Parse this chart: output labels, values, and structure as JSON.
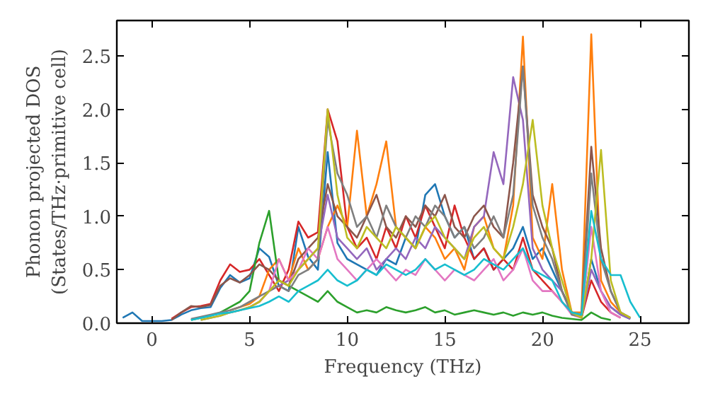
{
  "chart_data": {
    "type": "line",
    "xlabel": "Frequency (THz)",
    "ylabel": "Phonon projected DOS\n(States/THz·primitive cell)",
    "x": [
      -1.5,
      -1,
      -0.5,
      0,
      0.5,
      1,
      1.5,
      2,
      2.5,
      3,
      3.5,
      4,
      4.5,
      5,
      5.5,
      6,
      6.5,
      7,
      7.5,
      8,
      8.5,
      9,
      9.5,
      10,
      10.5,
      11,
      11.5,
      12,
      12.5,
      13,
      13.5,
      14,
      14.5,
      15,
      15.5,
      16,
      16.5,
      17,
      17.5,
      18,
      18.5,
      19,
      19.5,
      20,
      20.5,
      21,
      21.5,
      22,
      22.5,
      23,
      23.5,
      24,
      24.5,
      25
    ],
    "xlim": [
      -1.8,
      27.5
    ],
    "ylim": [
      0,
      2.83
    ],
    "xticks": [
      0,
      5,
      10,
      15,
      20,
      25
    ],
    "yticks": [
      {
        "value": 0,
        "label": "0.0"
      },
      {
        "value": 0.5,
        "label": "0.5"
      },
      {
        "value": 1,
        "label": "1.0"
      },
      {
        "value": 1.5,
        "label": "1.5"
      },
      {
        "value": 2,
        "label": "2.0"
      },
      {
        "value": 2.5,
        "label": "2.5"
      }
    ],
    "grid": false,
    "marker": "none",
    "line_style": "solid",
    "series": [
      {
        "color": "#1f77b4",
        "values": [
          0.05,
          0.1,
          0.02,
          0.02,
          0.02,
          0.03,
          0.08,
          0.12,
          0.14,
          0.15,
          0.33,
          0.45,
          0.38,
          0.42,
          0.7,
          0.62,
          0.35,
          0.3,
          0.9,
          0.62,
          0.5,
          1.6,
          0.75,
          0.6,
          0.55,
          0.5,
          0.45,
          0.6,
          0.55,
          0.8,
          0.7,
          1.2,
          1.3,
          1.0,
          0.8,
          0.9,
          0.6,
          0.7,
          0.5,
          0.6,
          0.7,
          0.9,
          0.6,
          0.7,
          0.5,
          0.3,
          0.1,
          0.05,
          0.6,
          0.3,
          0.15,
          0.08,
          0.04,
          null
        ]
      },
      {
        "color": "#d62728",
        "values": [
          null,
          null,
          null,
          null,
          null,
          0.04,
          0.1,
          0.15,
          0.16,
          0.18,
          0.4,
          0.55,
          0.48,
          0.5,
          0.6,
          0.45,
          0.3,
          0.5,
          0.95,
          0.8,
          0.85,
          2.0,
          1.7,
          0.9,
          0.7,
          0.8,
          0.6,
          0.9,
          0.7,
          1.0,
          0.8,
          1.1,
          0.9,
          0.7,
          1.1,
          0.8,
          0.6,
          0.7,
          0.5,
          0.6,
          0.5,
          0.8,
          0.5,
          0.4,
          0.3,
          0.2,
          0.1,
          0.05,
          0.4,
          0.2,
          0.1,
          0.05,
          null,
          null
        ]
      },
      {
        "color": "#ff7f0e",
        "values": [
          null,
          null,
          null,
          null,
          null,
          null,
          null,
          null,
          null,
          null,
          null,
          0.12,
          0.15,
          0.18,
          0.25,
          0.5,
          0.6,
          0.4,
          0.7,
          0.5,
          0.6,
          0.9,
          1.1,
          0.9,
          1.8,
          1.0,
          1.3,
          1.7,
          0.9,
          0.8,
          0.7,
          0.9,
          0.8,
          0.6,
          0.7,
          0.5,
          0.9,
          1.0,
          0.7,
          0.6,
          1.1,
          2.68,
          0.8,
          0.6,
          1.3,
          0.5,
          0.1,
          0.1,
          2.7,
          0.4,
          0.2,
          0.1,
          0.05,
          null
        ]
      },
      {
        "color": "#2ca02c",
        "values": [
          null,
          null,
          null,
          null,
          null,
          null,
          null,
          0.03,
          0.05,
          0.07,
          0.1,
          0.15,
          0.2,
          0.3,
          0.75,
          1.05,
          0.4,
          0.35,
          0.3,
          0.25,
          0.2,
          0.3,
          0.2,
          0.15,
          0.1,
          0.12,
          0.1,
          0.15,
          0.12,
          0.1,
          0.12,
          0.15,
          0.1,
          0.12,
          0.08,
          0.1,
          0.12,
          0.1,
          0.08,
          0.1,
          0.07,
          0.1,
          0.08,
          0.1,
          0.07,
          0.05,
          0.04,
          0.03,
          0.1,
          0.05,
          0.03,
          null,
          null,
          null
        ]
      },
      {
        "color": "#9467bd",
        "values": [
          null,
          null,
          null,
          null,
          null,
          null,
          null,
          null,
          0.03,
          0.05,
          0.07,
          0.1,
          0.12,
          0.15,
          0.2,
          0.3,
          0.35,
          0.4,
          0.5,
          0.6,
          0.7,
          1.2,
          0.8,
          0.7,
          0.6,
          0.7,
          0.5,
          0.6,
          0.7,
          0.6,
          0.8,
          0.7,
          0.9,
          0.8,
          0.7,
          0.6,
          0.9,
          1.0,
          1.6,
          1.3,
          2.3,
          1.9,
          0.7,
          0.5,
          0.4,
          0.3,
          0.1,
          0.05,
          0.5,
          0.3,
          0.15,
          0.08,
          0.04,
          null
        ]
      },
      {
        "color": "#8c564b",
        "values": [
          null,
          null,
          null,
          null,
          null,
          0.03,
          0.1,
          0.16,
          0.15,
          0.17,
          0.35,
          0.42,
          0.38,
          0.45,
          0.55,
          0.5,
          0.4,
          0.35,
          0.6,
          0.7,
          0.8,
          1.3,
          1.0,
          0.9,
          0.8,
          1.0,
          1.2,
          0.9,
          0.8,
          1.0,
          0.9,
          1.1,
          1.0,
          1.2,
          0.9,
          0.8,
          1.0,
          1.1,
          0.9,
          0.8,
          1.5,
          2.4,
          1.2,
          0.9,
          0.7,
          0.3,
          0.1,
          0.08,
          1.65,
          0.7,
          0.3,
          0.1,
          0.05,
          null
        ]
      },
      {
        "color": "#e377c2",
        "values": [
          null,
          null,
          null,
          null,
          null,
          null,
          null,
          null,
          null,
          null,
          null,
          null,
          null,
          0.15,
          0.2,
          0.3,
          0.6,
          0.4,
          0.5,
          0.7,
          0.6,
          0.9,
          0.6,
          0.5,
          0.4,
          0.5,
          0.6,
          0.5,
          0.4,
          0.5,
          0.45,
          0.6,
          0.5,
          0.4,
          0.5,
          0.45,
          0.4,
          0.5,
          0.6,
          0.4,
          0.5,
          0.7,
          0.4,
          0.3,
          0.3,
          0.2,
          0.08,
          0.05,
          0.9,
          0.3,
          0.1,
          0.05,
          null,
          null
        ]
      },
      {
        "color": "#7f7f7f",
        "values": [
          null,
          null,
          null,
          null,
          null,
          null,
          null,
          0.04,
          0.06,
          0.08,
          0.1,
          0.12,
          0.15,
          0.2,
          0.25,
          0.3,
          0.35,
          0.3,
          0.45,
          0.5,
          0.6,
          1.9,
          1.4,
          1.2,
          0.9,
          1.0,
          0.8,
          1.1,
          0.9,
          0.8,
          1.0,
          0.9,
          1.1,
          1.0,
          0.8,
          0.9,
          0.7,
          0.8,
          1.0,
          0.8,
          1.2,
          2.4,
          1.1,
          0.8,
          0.6,
          0.3,
          0.08,
          0.06,
          1.4,
          0.6,
          0.3,
          0.1,
          0.05,
          null
        ]
      },
      {
        "color": "#bcbd22",
        "values": [
          null,
          null,
          null,
          null,
          null,
          null,
          null,
          null,
          0.03,
          0.05,
          0.07,
          0.1,
          0.12,
          0.15,
          0.2,
          0.3,
          0.4,
          0.35,
          0.5,
          0.6,
          0.7,
          2.0,
          1.2,
          0.8,
          0.7,
          0.9,
          0.8,
          0.7,
          0.9,
          0.8,
          0.7,
          0.9,
          1.0,
          0.8,
          0.7,
          0.6,
          0.8,
          0.9,
          0.7,
          0.6,
          0.9,
          1.3,
          1.9,
          1.1,
          0.7,
          0.4,
          0.1,
          0.05,
          0.6,
          1.62,
          0.4,
          0.1,
          0.05,
          null
        ]
      },
      {
        "color": "#17becf",
        "values": [
          null,
          null,
          null,
          null,
          null,
          null,
          null,
          0.03,
          0.05,
          0.07,
          0.09,
          0.1,
          0.12,
          0.14,
          0.16,
          0.2,
          0.25,
          0.2,
          0.3,
          0.35,
          0.4,
          0.5,
          0.4,
          0.35,
          0.4,
          0.5,
          0.45,
          0.55,
          0.5,
          0.45,
          0.5,
          0.6,
          0.5,
          0.55,
          0.5,
          0.45,
          0.5,
          0.6,
          0.55,
          0.5,
          0.6,
          0.7,
          0.5,
          0.45,
          0.4,
          0.2,
          0.1,
          0.08,
          1.05,
          0.6,
          0.45,
          0.45,
          0.2,
          0.05
        ]
      }
    ]
  }
}
